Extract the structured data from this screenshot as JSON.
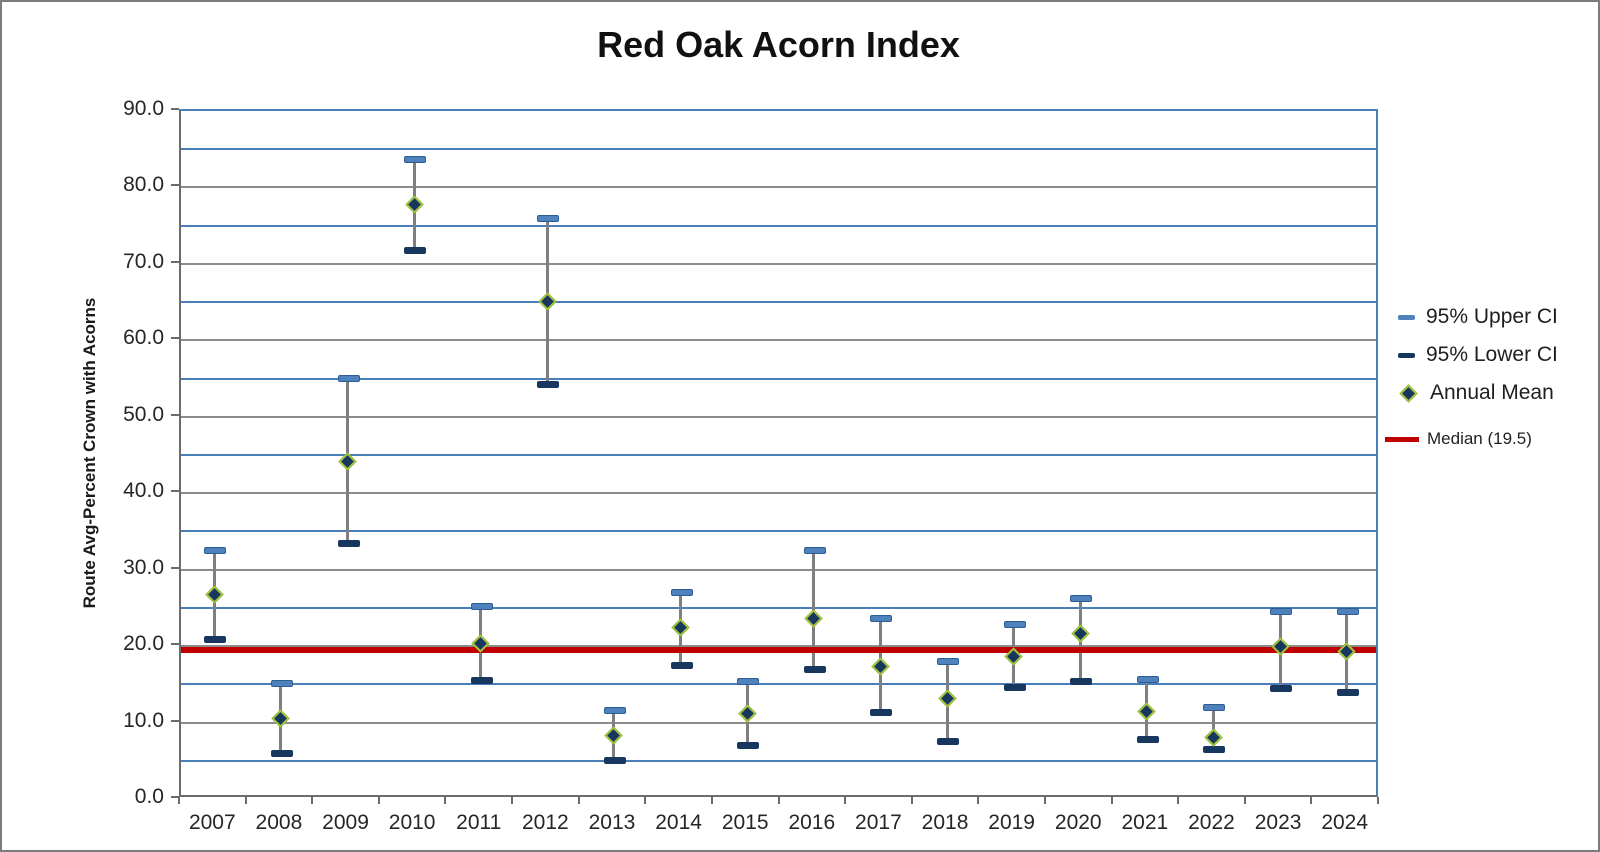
{
  "chart_data": {
    "type": "scatter",
    "title": "Red Oak Acorn Index",
    "xlabel": "",
    "ylabel": "Route Avg-Percent Crown with Acorns",
    "ylim": [
      0,
      90
    ],
    "y_major_step": 10,
    "y_minor_step": 5,
    "y_tick_decimals": 1,
    "grid": true,
    "legend_position": "right",
    "categories": [
      "2007",
      "2008",
      "2009",
      "2010",
      "2011",
      "2012",
      "2013",
      "2014",
      "2015",
      "2016",
      "2017",
      "2018",
      "2019",
      "2020",
      "2021",
      "2022",
      "2023",
      "2024"
    ],
    "series": [
      {
        "name": "95% Upper CI",
        "marker": "dash",
        "color": "#4f81bd",
        "edge_color": "#2e5c94",
        "values": [
          32.6,
          15.3,
          55.1,
          83.8,
          25.3,
          76.1,
          11.7,
          27.2,
          15.5,
          32.6,
          23.7,
          18.1,
          22.9,
          26.4,
          15.7,
          12.1,
          24.7,
          24.6
        ]
      },
      {
        "name": "95% Lower CI",
        "marker": "dash",
        "color": "#17375e",
        "edge_color": "#17375e",
        "values": [
          21.0,
          6.1,
          33.6,
          71.9,
          15.6,
          54.3,
          5.2,
          17.6,
          7.1,
          17.1,
          11.4,
          7.7,
          14.7,
          15.5,
          7.9,
          6.6,
          14.6,
          14.0
        ]
      },
      {
        "name": "Annual Mean",
        "marker": "diamond",
        "color": "#17375e",
        "outline_color": "#a3c53a",
        "values": [
          26.7,
          10.5,
          44.2,
          77.8,
          20.4,
          65.1,
          8.3,
          22.4,
          11.2,
          23.6,
          17.3,
          13.2,
          18.7,
          21.7,
          11.5,
          8.0,
          20.0,
          19.3
        ]
      }
    ],
    "median_line": {
      "label": "Median (19.5)",
      "value": 19.5,
      "color": "#c00000"
    },
    "error_bar_color": "#7f7f7f",
    "grid_major_color": "#8c8c8c",
    "grid_minor_color": "#4a7ebb"
  }
}
